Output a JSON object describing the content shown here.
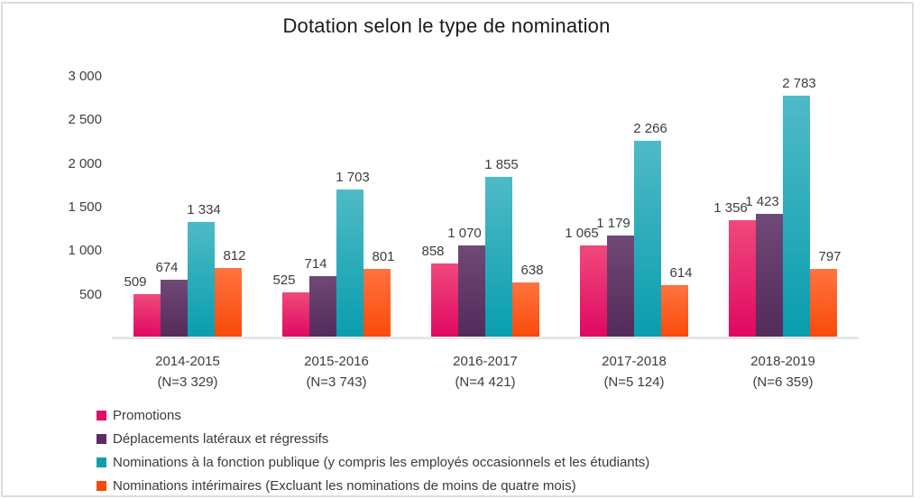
{
  "panel": {
    "border_color": "#DCDCDC",
    "background": "#FFFFFF"
  },
  "chart_data": {
    "type": "bar",
    "title": "Dotation selon le type de nomination",
    "categories": [
      {
        "label": "2014-2015",
        "sublabel": "(N=3 329)"
      },
      {
        "label": "2015-2016",
        "sublabel": "(N=3 743)"
      },
      {
        "label": "2016-2017",
        "sublabel": "(N=4 421)"
      },
      {
        "label": "2017-2018",
        "sublabel": "(N=5 124)"
      },
      {
        "label": "2018-2019",
        "sublabel": "(N=6 359)"
      }
    ],
    "series": [
      {
        "name": "Promotions",
        "values": [
          509,
          525,
          858,
          1065,
          1356
        ],
        "color": "#E00E68",
        "gradient_top": "#F0497B",
        "gradient_bottom": "#DF0762"
      },
      {
        "name": "Déplacements latéraux et régressifs",
        "values": [
          674,
          714,
          1070,
          1179,
          1423
        ],
        "color": "#5C2D62",
        "gradient_top": "#704977",
        "gradient_bottom": "#532A5A"
      },
      {
        "name": "Nominations à la fonction publique (y compris les employés occasionnels et les étudiants)",
        "values": [
          1334,
          1703,
          1855,
          2266,
          2783
        ],
        "color": "#0E9FAE",
        "gradient_top": "#4FBAC7",
        "gradient_bottom": "#089DAE"
      },
      {
        "name": "Nominations intérimaires (Excluant les nominations de moins de quatre mois)",
        "values": [
          812,
          801,
          638,
          614,
          797
        ],
        "color": "#F54B0C",
        "gradient_top": "#FF7340",
        "gradient_bottom": "#F84A08"
      }
    ],
    "data_labels": [
      [
        "509",
        "525",
        "858",
        "1 065",
        "1 356"
      ],
      [
        "674",
        "714",
        "1 070",
        "1 179",
        "1 423"
      ],
      [
        "1 334",
        "1 703",
        "1 855",
        "2 266",
        "2 783"
      ],
      [
        "812",
        "801",
        "638",
        "614",
        "797"
      ]
    ],
    "yticks": [
      {
        "value": 500,
        "label": "500"
      },
      {
        "value": 1000,
        "label": "1 000"
      },
      {
        "value": 1500,
        "label": "1 500"
      },
      {
        "value": 2000,
        "label": "2 000"
      },
      {
        "value": 2500,
        "label": "2 500"
      },
      {
        "value": 3000,
        "label": "3 000"
      }
    ],
    "ylim": [
      0,
      3000
    ],
    "ytick_step": 500,
    "grid": false,
    "legend_position": "bottom-left",
    "axis_line_color": "#E5E7E9",
    "text_color": "#3D3D3D"
  }
}
